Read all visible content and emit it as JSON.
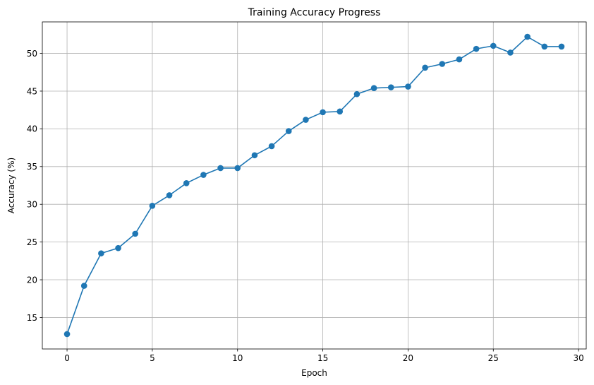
{
  "chart_data": {
    "type": "line",
    "title": "Training Accuracy Progress",
    "xlabel": "Epoch",
    "ylabel": "Accuracy (%)",
    "x": [
      0,
      1,
      2,
      3,
      4,
      5,
      6,
      7,
      8,
      9,
      10,
      11,
      12,
      13,
      14,
      15,
      16,
      17,
      18,
      19,
      20,
      21,
      22,
      23,
      24,
      25,
      26,
      27,
      28,
      29
    ],
    "series": [
      {
        "values": [
          12.8,
          19.2,
          23.5,
          24.2,
          26.1,
          29.8,
          31.2,
          32.8,
          33.9,
          34.8,
          34.8,
          36.5,
          37.7,
          39.7,
          41.2,
          42.2,
          42.3,
          44.6,
          45.4,
          45.5,
          45.6,
          48.1,
          48.6,
          49.2,
          50.6,
          51.0,
          50.1,
          52.2,
          50.9,
          50.9
        ],
        "color": "#1f77b4",
        "marker": "circle"
      }
    ],
    "xlim": [
      -1.45,
      30.45
    ],
    "ylim": [
      10.83,
      54.17
    ],
    "xticks": [
      0,
      5,
      10,
      15,
      20,
      25,
      30
    ],
    "yticks": [
      15,
      20,
      25,
      30,
      35,
      40,
      45,
      50
    ],
    "grid": true,
    "legend": "none"
  }
}
